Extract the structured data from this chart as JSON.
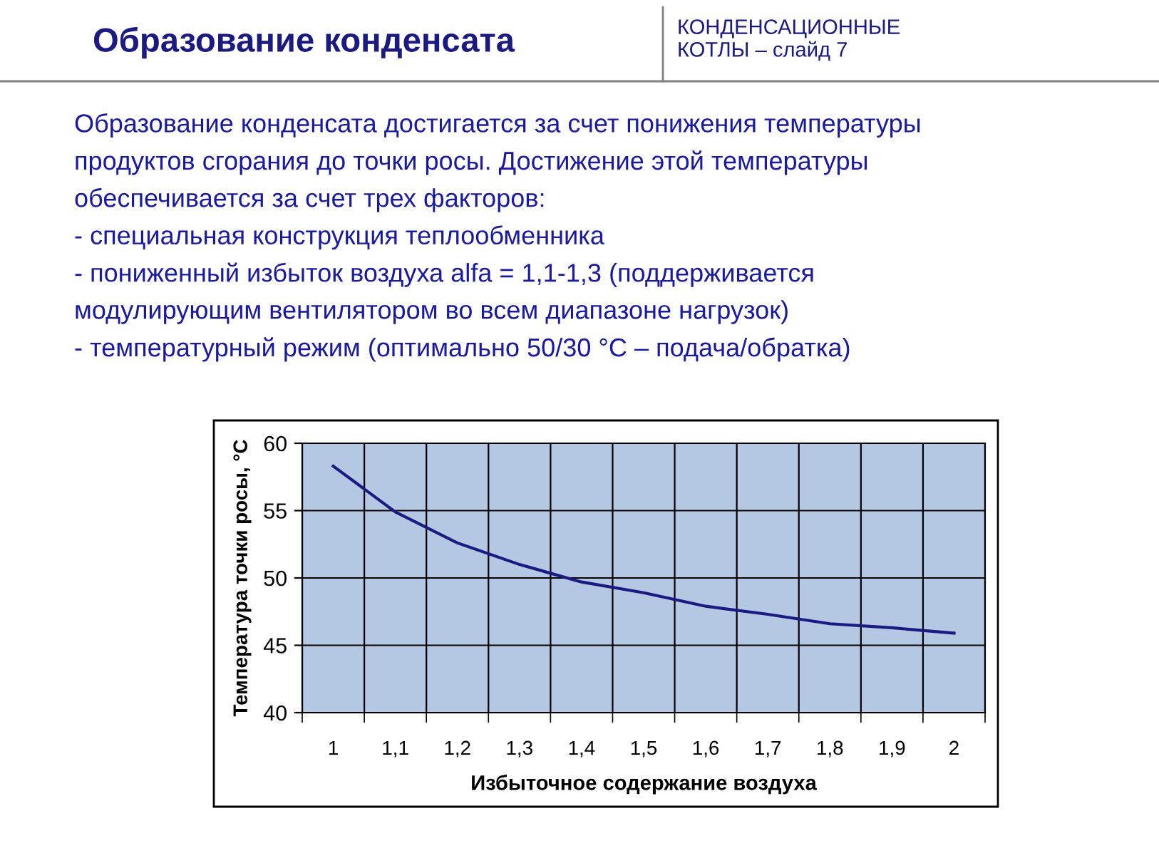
{
  "chart_data": {
    "type": "line",
    "title": "Образование конденсата",
    "subtitle": "КОНДЕНСАЦИОННЫЕ\nКОТЛЫ – слайд 7",
    "annotations": [
      "Образование конденсата достигается за счет понижения температуры",
      "продуктов сгорания до точки росы. Достижение этой температуры",
      "обеспечивается за счет трех факторов:",
      "- специальная конструкция теплообменника",
      "- пониженный избыток воздуха alfa = 1,1-1,3 (поддерживается",
      "модулирующим вентилятором во всем диапазоне нагрузок)",
      "- температурный режим (оптимально 50/30 °С – подача/обратка)"
    ],
    "xlabel": "Избыточное содержание воздуха",
    "ylabel": "Температура точки росы, °С",
    "categories": [
      "1",
      "1,1",
      "1,2",
      "1,3",
      "1,4",
      "1,5",
      "1,6",
      "1,7",
      "1,8",
      "1,9",
      "2"
    ],
    "series": [
      {
        "color": "#1a1a80",
        "values": [
          58.3,
          54.9,
          52.6,
          51.0,
          49.7,
          48.9,
          47.9,
          47.3,
          46.6,
          46.3,
          45.9
        ]
      }
    ],
    "ylim": [
      40,
      60
    ],
    "yticks": [
      40,
      45,
      50,
      55,
      60
    ],
    "grid": true,
    "marker": "none",
    "line_style": "solid"
  }
}
